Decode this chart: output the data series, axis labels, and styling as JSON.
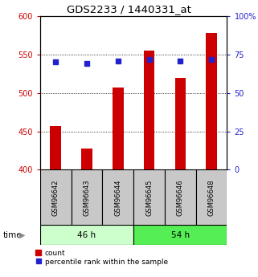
{
  "title": "GDS2233 / 1440331_at",
  "categories": [
    "GSM96642",
    "GSM96643",
    "GSM96644",
    "GSM96645",
    "GSM96646",
    "GSM96648"
  ],
  "bar_values": [
    457,
    428,
    507,
    555,
    520,
    578
  ],
  "percentile_values": [
    70,
    69,
    71,
    72,
    71,
    72
  ],
  "bar_color": "#cc0000",
  "marker_color": "#2222cc",
  "ylim_left": [
    400,
    600
  ],
  "ylim_right": [
    0,
    100
  ],
  "yticks_left": [
    400,
    450,
    500,
    550,
    600
  ],
  "yticks_right": [
    0,
    25,
    50,
    75,
    100
  ],
  "ytick_labels_right": [
    "0",
    "25",
    "50",
    "75",
    "100%"
  ],
  "group1_label": "46 h",
  "group2_label": "54 h",
  "group1_indices": [
    0,
    1,
    2
  ],
  "group2_indices": [
    3,
    4,
    5
  ],
  "group1_color": "#ccffcc",
  "group2_color": "#55ee55",
  "legend_bar_label": "count",
  "legend_marker_label": "percentile rank within the sample",
  "time_label": "time",
  "left_tick_color": "#cc0000",
  "right_tick_color": "#2222cc",
  "bar_bottom": 400,
  "bar_width": 0.35,
  "figsize": [
    3.21,
    3.45
  ],
  "dpi": 100
}
